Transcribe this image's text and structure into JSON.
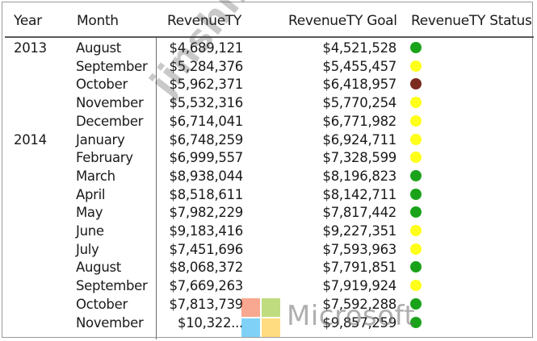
{
  "headers": {
    "year": "Year",
    "month": "Month",
    "revenue": "RevenueTY",
    "goal": "RevenueTY Goal",
    "status": "RevenueTY Status"
  },
  "status_colors": {
    "green": "#1aa31a",
    "yellow": "#ffff1a",
    "red": "#7b2a1f"
  },
  "rows": [
    {
      "year": "2013",
      "month": "August",
      "revenue": "$4,689,121",
      "goal": "$4,521,528",
      "status": "green"
    },
    {
      "year": "",
      "month": "September",
      "revenue": "$5,284,376",
      "goal": "$5,455,457",
      "status": "yellow"
    },
    {
      "year": "",
      "month": "October",
      "revenue": "$5,962,371",
      "goal": "$6,418,957",
      "status": "red"
    },
    {
      "year": "",
      "month": "November",
      "revenue": "$5,532,316",
      "goal": "$5,770,254",
      "status": "yellow"
    },
    {
      "year": "",
      "month": "December",
      "revenue": "$6,714,041",
      "goal": "$6,771,982",
      "status": "yellow"
    },
    {
      "year": "2014",
      "month": "January",
      "revenue": "$6,748,259",
      "goal": "$6,924,711",
      "status": "yellow"
    },
    {
      "year": "",
      "month": "February",
      "revenue": "$6,999,557",
      "goal": "$7,328,599",
      "status": "yellow"
    },
    {
      "year": "",
      "month": "March",
      "revenue": "$8,938,044",
      "goal": "$8,196,823",
      "status": "green"
    },
    {
      "year": "",
      "month": "April",
      "revenue": "$8,518,611",
      "goal": "$8,142,711",
      "status": "green"
    },
    {
      "year": "",
      "month": "May",
      "revenue": "$7,982,229",
      "goal": "$7,817,442",
      "status": "green"
    },
    {
      "year": "",
      "month": "June",
      "revenue": "$9,183,416",
      "goal": "$9,227,351",
      "status": "yellow"
    },
    {
      "year": "",
      "month": "July",
      "revenue": "$7,451,696",
      "goal": "$7,593,963",
      "status": "yellow"
    },
    {
      "year": "",
      "month": "August",
      "revenue": "$8,068,372",
      "goal": "$7,791,851",
      "status": "green"
    },
    {
      "year": "",
      "month": "September",
      "revenue": "$7,669,263",
      "goal": "$7,919,924",
      "status": "yellow"
    },
    {
      "year": "",
      "month": "October",
      "revenue": "$7,813,739",
      "goal": "$7,592,288",
      "status": "green"
    },
    {
      "year": "",
      "month": "November",
      "revenue": "$10,322...",
      "goal": "$9,857,259",
      "status": "green"
    }
  ],
  "watermark": "jinshiken.com",
  "logo": {
    "text": "Microsoft",
    "colors": [
      "#f25022",
      "#7fba00",
      "#00a4ef",
      "#ffb900"
    ]
  }
}
